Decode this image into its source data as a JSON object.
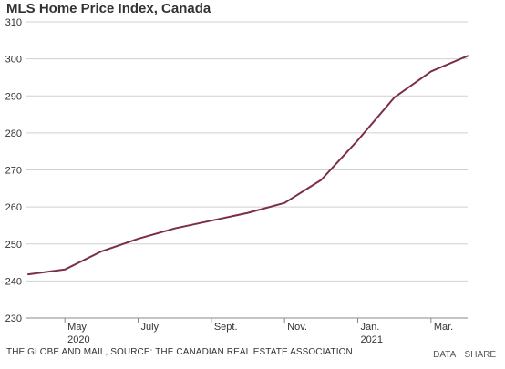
{
  "chart_data": {
    "type": "line",
    "title": "MLS Home Price Index, Canada",
    "xlabel": "",
    "ylabel": "",
    "ylim": [
      230,
      310
    ],
    "yticks": [
      230,
      240,
      250,
      260,
      270,
      280,
      290,
      300,
      310
    ],
    "grid": true,
    "legend": "none",
    "x": [
      "2020-04",
      "2020-05",
      "2020-06",
      "2020-07",
      "2020-08",
      "2020-09",
      "2020-10",
      "2020-11",
      "2020-12",
      "2021-01",
      "2021-02",
      "2021-03",
      "2021-04"
    ],
    "x_tick_labels": [
      {
        "month": "2020-05",
        "label": "May",
        "year": "2020"
      },
      {
        "month": "2020-07",
        "label": "July",
        "year": ""
      },
      {
        "month": "2020-09",
        "label": "Sept.",
        "year": ""
      },
      {
        "month": "2020-11",
        "label": "Nov.",
        "year": ""
      },
      {
        "month": "2021-01",
        "label": "Jan.",
        "year": "2021"
      },
      {
        "month": "2021-03",
        "label": "Mar.",
        "year": ""
      }
    ],
    "series": [
      {
        "values": [
          241.8,
          243.1,
          248.0,
          251.4,
          254.2,
          256.3,
          258.4,
          261.1,
          267.3,
          278.0,
          289.6,
          296.6,
          300.8
        ]
      }
    ]
  },
  "source": "THE GLOBE AND MAIL, SOURCE: THE CANADIAN REAL ESTATE ASSOCIATION",
  "footer": {
    "data_link": "DATA",
    "share_link": "SHARE"
  },
  "colors": {
    "series": "#7b2d4e",
    "grid": "#d0d0d0",
    "axis": "#888888",
    "text": "#333333"
  }
}
